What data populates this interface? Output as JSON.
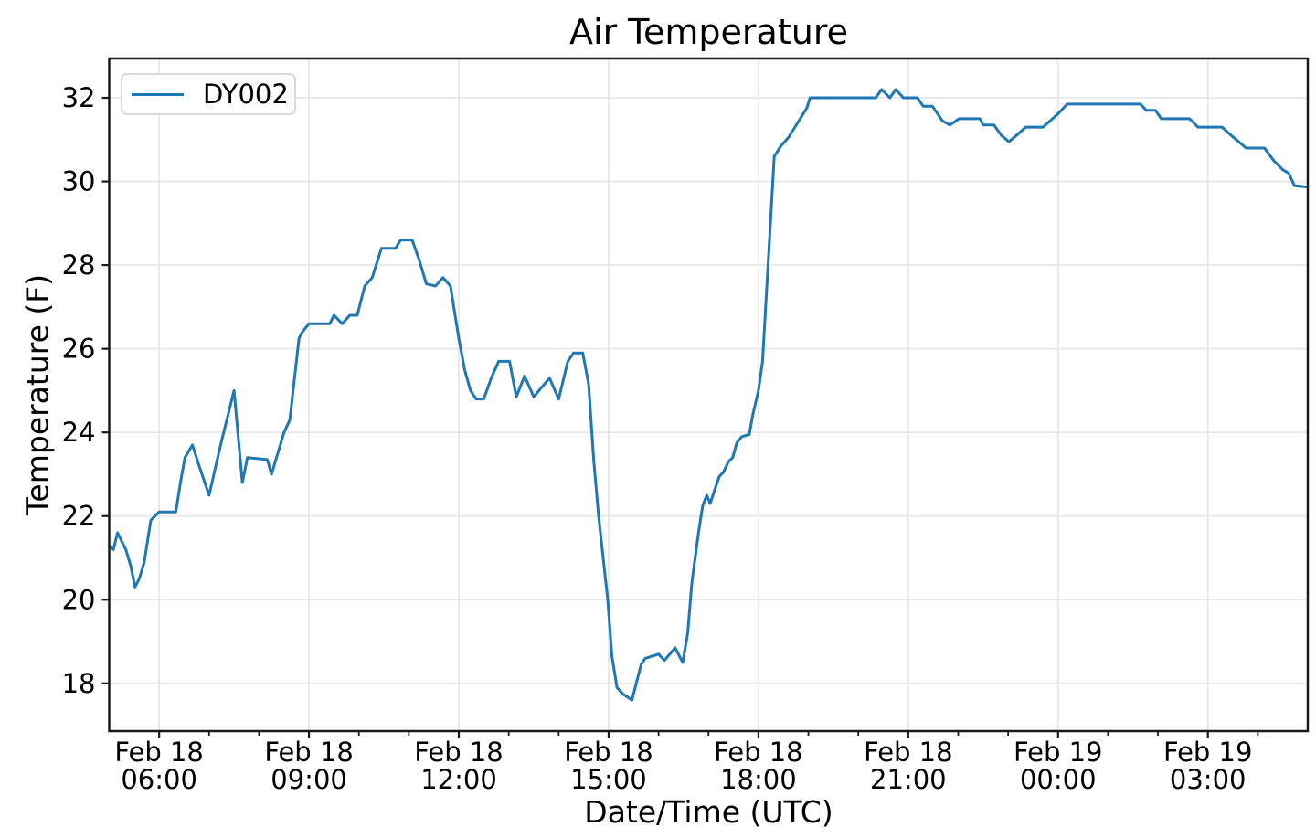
{
  "figure": {
    "background": "#ffffff"
  },
  "colors": {
    "line": "#1f77b4",
    "grid": "#e7e7e7",
    "spine": "#1a1a1a",
    "text": "#000000"
  },
  "legend": {
    "series_label": "DY002",
    "position": "upper left"
  },
  "chart_data": {
    "type": "line",
    "title": "Air Temperature",
    "xlabel": "Date/Time (UTC)",
    "ylabel": "Temperature (F)",
    "x_axis": {
      "start": "Feb 18 05:00 UTC",
      "end": "Feb 19 05:00 UTC",
      "unit": "minutes since Feb 18 05:00 UTC",
      "span_minutes": 1440
    },
    "ylim": [
      16.86,
      32.94
    ],
    "y_ticks": [
      18,
      20,
      22,
      24,
      26,
      28,
      30,
      32
    ],
    "x_major_ticks": [
      {
        "hour": 1,
        "line1": "Feb 18",
        "line2": "06:00"
      },
      {
        "hour": 4,
        "line1": "Feb 18",
        "line2": "09:00"
      },
      {
        "hour": 7,
        "line1": "Feb 18",
        "line2": "12:00"
      },
      {
        "hour": 10,
        "line1": "Feb 18",
        "line2": "15:00"
      },
      {
        "hour": 13,
        "line1": "Feb 18",
        "line2": "18:00"
      },
      {
        "hour": 16,
        "line1": "Feb 18",
        "line2": "21:00"
      },
      {
        "hour": 19,
        "line1": "Feb 19",
        "line2": "00:00"
      },
      {
        "hour": 22,
        "line1": "Feb 19",
        "line2": "03:00"
      }
    ],
    "x_minor_tick_interval_hours": 1,
    "grid": true,
    "legend_position": "upper left",
    "series": [
      {
        "name": "DY002",
        "color": "#1f77b4",
        "x_minutes": [
          0,
          5,
          10,
          20,
          26,
          31,
          36,
          42,
          50,
          55,
          60,
          80,
          86,
          91,
          100,
          108,
          120,
          128,
          135,
          150,
          160,
          166,
          190,
          195,
          210,
          217,
          228,
          232,
          240,
          265,
          270,
          280,
          289,
          298,
          307,
          316,
          327,
          344,
          350,
          364,
          372,
          381,
          392,
          401,
          410,
          420,
          427,
          434,
          441,
          450,
          459,
          468,
          481,
          489,
          499,
          510,
          529,
          540,
          551,
          558,
          569,
          576,
          582,
          588,
          599,
          604,
          610,
          617,
          628,
          639,
          644,
          660,
          667,
          680,
          689,
          695,
          700,
          708,
          713,
          718,
          722,
          727,
          733,
          738,
          744,
          749,
          754,
          760,
          769,
          773,
          780,
          785,
          799,
          807,
          816,
          827,
          838,
          842,
          921,
          928,
          938,
          945,
          954,
          971,
          978,
          989,
          1001,
          1010,
          1021,
          1046,
          1050,
          1063,
          1072,
          1081,
          1090,
          1101,
          1122,
          1139,
          1151,
          1239,
          1246,
          1257,
          1264,
          1298,
          1308,
          1337,
          1348,
          1366,
          1388,
          1399,
          1410,
          1417,
          1424,
          1438
        ],
        "values": [
          21.3,
          21.2,
          21.6,
          21.2,
          20.8,
          20.3,
          20.5,
          20.9,
          21.9,
          22.0,
          22.1,
          22.1,
          22.85,
          23.4,
          23.7,
          23.2,
          22.5,
          23.2,
          23.8,
          25.0,
          22.8,
          23.4,
          23.35,
          23.0,
          24.0,
          24.3,
          26.25,
          26.4,
          26.6,
          26.6,
          26.8,
          26.6,
          26.8,
          26.8,
          27.5,
          27.7,
          28.4,
          28.4,
          28.6,
          28.6,
          28.15,
          27.55,
          27.5,
          27.7,
          27.5,
          26.25,
          25.5,
          25.0,
          24.8,
          24.8,
          25.3,
          25.7,
          25.7,
          24.85,
          25.35,
          24.85,
          25.3,
          24.8,
          25.7,
          25.9,
          25.9,
          25.15,
          23.35,
          22.0,
          20.0,
          18.65,
          17.9,
          17.75,
          17.6,
          18.45,
          18.6,
          18.7,
          18.55,
          18.85,
          18.5,
          19.2,
          20.4,
          21.6,
          22.25,
          22.5,
          22.3,
          22.6,
          22.95,
          23.05,
          23.3,
          23.4,
          23.75,
          23.9,
          23.95,
          24.4,
          25.0,
          25.7,
          30.6,
          30.85,
          31.05,
          31.4,
          31.75,
          32.0,
          32.0,
          32.2,
          32.0,
          32.2,
          32.0,
          32.0,
          31.8,
          31.8,
          31.45,
          31.35,
          31.5,
          31.5,
          31.35,
          31.35,
          31.1,
          30.95,
          31.1,
          31.3,
          31.3,
          31.6,
          31.85,
          31.85,
          31.7,
          31.7,
          31.5,
          31.5,
          31.3,
          31.3,
          31.1,
          30.8,
          30.8,
          30.5,
          30.28,
          30.2,
          29.9,
          29.87
        ]
      }
    ]
  }
}
